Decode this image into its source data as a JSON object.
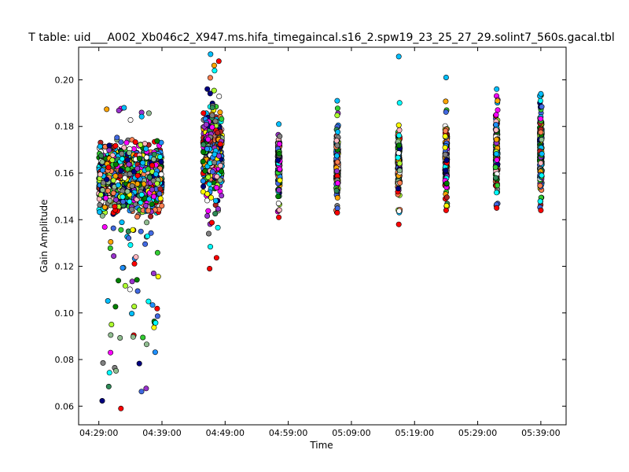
{
  "chart_data": {
    "type": "scatter",
    "title": "T table: uid___A002_Xb046c2_X947.ms.hifa_timegaincal.s16_2.spw19_23_25_27_29.solint7_560s.gacal.tbl",
    "xlabel": "Time",
    "ylabel": "Gain Amplitude",
    "x_ticks": [
      "04:29:00",
      "04:39:00",
      "04:49:00",
      "04:59:00",
      "05:09:00",
      "05:19:00",
      "05:29:00",
      "05:39:00"
    ],
    "y_ticks": [
      "0.06",
      "0.08",
      "0.10",
      "0.12",
      "0.14",
      "0.16",
      "0.18",
      "0.20"
    ],
    "xlim_minutes_after_04_29_00": [
      -3.2,
      74.0
    ],
    "ylim": [
      0.052,
      0.214
    ],
    "grid": false,
    "legend": "none",
    "marker": "circle",
    "colors": [
      "#ff00ff",
      "#008000",
      "#ff0000",
      "#1e90ff",
      "#00bfff",
      "#00ffff",
      "#ffff00",
      "#ffa500",
      "#8fbc8f",
      "#808080",
      "#ffffff",
      "#9932cc",
      "#ff7f50",
      "#2e8b57",
      "#b22222",
      "#adff2f",
      "#4169e1",
      "#000080",
      "#ffb6c1",
      "#32cd32"
    ],
    "clusters": [
      {
        "time": "04:29:00–04:39:00",
        "y_core": [
          0.14,
          0.175
        ],
        "y_min": 0.059,
        "y_max": 0.188
      },
      {
        "time": "04:45:30–04:48:30",
        "y_core": [
          0.145,
          0.192
        ],
        "y_min": 0.119,
        "y_max": 0.211
      },
      {
        "time": "04:57:30",
        "y_core": [
          0.147,
          0.181
        ],
        "y_min": 0.141,
        "y_max": 0.181
      },
      {
        "time": "05:06:45",
        "y_core": [
          0.145,
          0.183
        ],
        "y_min": 0.143,
        "y_max": 0.191
      },
      {
        "time": "05:16:30",
        "y_core": [
          0.146,
          0.185
        ],
        "y_min": 0.138,
        "y_max": 0.21
      },
      {
        "time": "05:24:00",
        "y_core": [
          0.146,
          0.185
        ],
        "y_min": 0.144,
        "y_max": 0.201
      },
      {
        "time": "05:32:00",
        "y_core": [
          0.147,
          0.19
        ],
        "y_min": 0.145,
        "y_max": 0.196
      },
      {
        "time": "05:39:00",
        "y_core": [
          0.148,
          0.192
        ],
        "y_min": 0.144,
        "y_max": 0.194
      }
    ]
  }
}
